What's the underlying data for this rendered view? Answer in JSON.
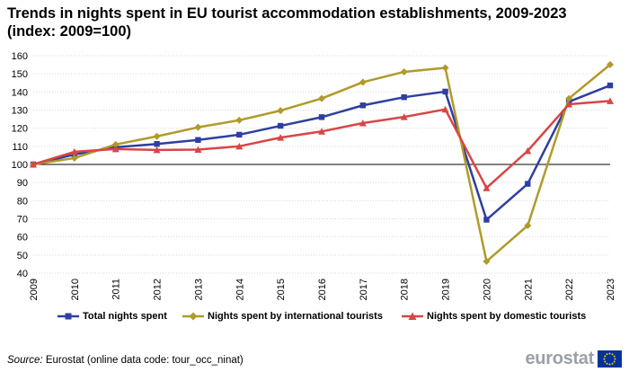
{
  "title": "Trends in nights spent in EU tourist accommodation establishments, 2009-2023 (index: 2009=100)",
  "source_label": "Source:",
  "source_text": "Eurostat (online data code: tour_occ_ninat)",
  "brand": "eurostat",
  "icons": {
    "brand_flag": "eu-flag-icon"
  },
  "chart_data": {
    "type": "line",
    "title": "Trends in nights spent in EU tourist accommodation establishments, 2009-2023 (index: 2009=100)",
    "x": [
      "2009",
      "2010",
      "2011",
      "2012",
      "2013",
      "2014",
      "2015",
      "2016",
      "2017",
      "2018",
      "2019",
      "2020",
      "2021",
      "2022",
      "2023"
    ],
    "ylim": [
      40,
      160
    ],
    "yticks": [
      40,
      50,
      60,
      70,
      80,
      90,
      100,
      110,
      120,
      130,
      140,
      150,
      160
    ],
    "baseline": 100,
    "grid": true,
    "legend_position": "bottom",
    "series": [
      {
        "name": "Total nights spent",
        "color": "#2e3fa0",
        "marker": "square",
        "values": [
          100,
          105.5,
          109.5,
          111.3,
          113.5,
          116.4,
          121.3,
          126.1,
          132.6,
          137.1,
          140.2,
          69.5,
          89.3,
          134.6,
          143.6
        ]
      },
      {
        "name": "Nights spent by international tourists",
        "color": "#b09a2a",
        "marker": "diamond",
        "values": [
          100,
          103.5,
          111.0,
          115.5,
          120.5,
          124.4,
          129.7,
          136.4,
          145.4,
          151.1,
          153.3,
          46.5,
          66.3,
          136.4,
          155.1
        ]
      },
      {
        "name": "Nights spent by domestic tourists",
        "color": "#d94545",
        "marker": "triangle",
        "values": [
          100,
          107.0,
          108.5,
          108.0,
          108.2,
          110.0,
          114.8,
          118.2,
          122.8,
          126.2,
          130.4,
          87.0,
          107.5,
          133.2,
          135.0
        ]
      }
    ]
  }
}
